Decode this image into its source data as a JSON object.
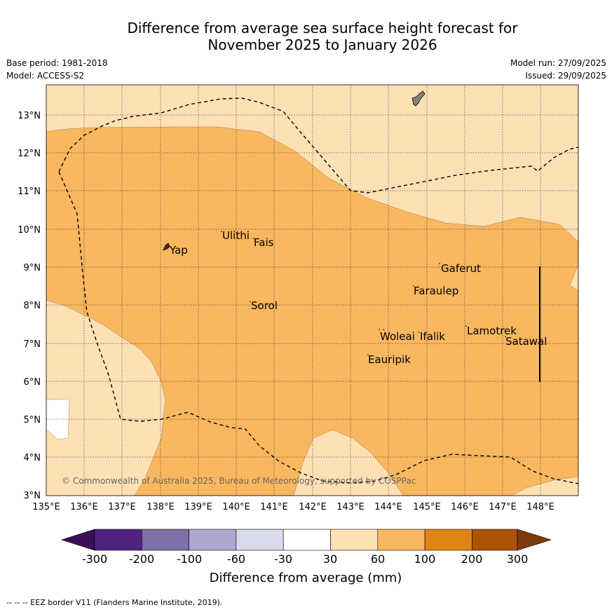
{
  "title": {
    "line1": "Difference from average sea surface height forecast for",
    "line2": "November 2025 to January 2026"
  },
  "meta": {
    "base_period": "Base period: 1981-2018",
    "model": "Model: ACCESS-S2",
    "model_run": "Model run: 27/09/2025",
    "issued": "Issued: 29/09/2025"
  },
  "map": {
    "lon_labels": [
      "135°E",
      "136°E",
      "137°E",
      "138°E",
      "139°E",
      "140°E",
      "141°E",
      "142°E",
      "143°E",
      "144°E",
      "145°E",
      "146°E",
      "147°E",
      "148°E"
    ],
    "lat_labels": [
      "13°N",
      "12°N",
      "11°N",
      "10°N",
      "9°N",
      "8°N",
      "7°N",
      "6°N",
      "5°N",
      "4°N",
      "3°N"
    ],
    "places": [
      "Ulithi",
      "Fais",
      "Yap",
      "Gaferut",
      "Faraulep",
      "Sorol",
      "Woleai",
      "Ifalik",
      "Lamotrek",
      "Satawal",
      "Eauripik"
    ],
    "copyright": "© Commonwealth of Australia 2025, Bureau of Meteorology, supported by COSPPac",
    "colors": {
      "land": "#808080",
      "band_30_60": "#fde0b4",
      "band_60_100": "#f9b75f",
      "no_change": "#ffffff"
    }
  },
  "colorbar": {
    "ticks": [
      "-300",
      "-200",
      "-100",
      "-60",
      "-30",
      "30",
      "60",
      "100",
      "200",
      "300"
    ],
    "colors": [
      "#3b0f57",
      "#4f2282",
      "#7e6fa9",
      "#afa7d0",
      "#d9d9ec",
      "#ffffff",
      "#fde0b4",
      "#f9b75f",
      "#e08414",
      "#ac5404",
      "#7e3a0a"
    ],
    "label": "Difference from average (mm)"
  },
  "footer": "--  --  -- EEZ border V11 (Flanders Marine Institute, 2019)."
}
